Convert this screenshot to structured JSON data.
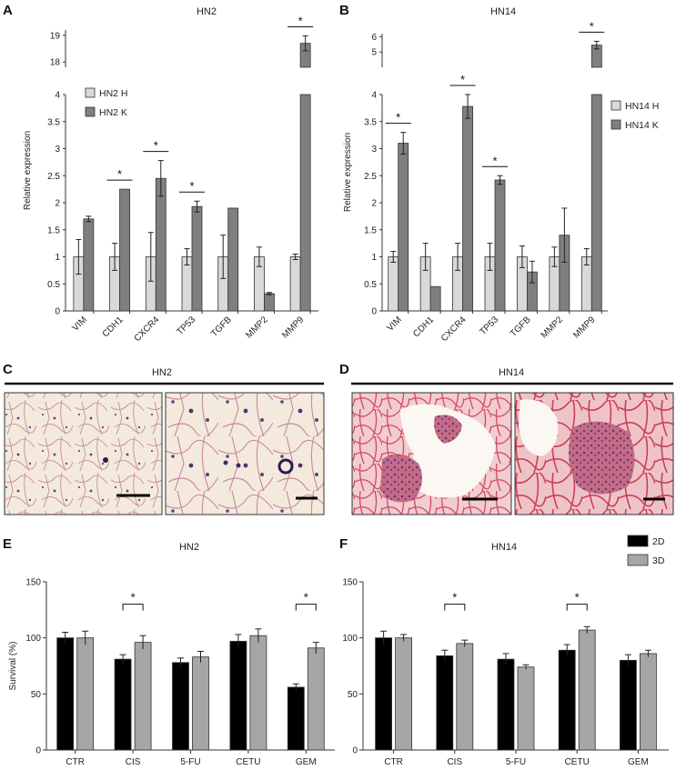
{
  "panels": {
    "A": {
      "letter": "A",
      "title": "HN2"
    },
    "B": {
      "letter": "B",
      "title": "HN14"
    },
    "C": {
      "letter": "C",
      "title": "HN2"
    },
    "D": {
      "letter": "D",
      "title": "HN14"
    },
    "E": {
      "letter": "E",
      "title": "HN2"
    },
    "F": {
      "letter": "F",
      "title": "HN14"
    }
  },
  "chart_data": [
    {
      "id": "A",
      "type": "bar",
      "title": "HN2",
      "ylabel": "Relative expression",
      "categories": [
        "VIM",
        "CDH1",
        "CXCR4",
        "TP53",
        "TGFB",
        "MMP2",
        "MMP9"
      ],
      "yticks_lower": [
        "0",
        "0.5",
        "1",
        "1.5",
        "2",
        "2.5",
        "3",
        "3.5",
        "4"
      ],
      "yticks_upper": [
        "18",
        "19"
      ],
      "axis_break": {
        "lower": [
          0,
          4
        ],
        "upper": [
          17.8,
          19.2
        ]
      },
      "legend": {
        "position": "top-left",
        "colors": {
          "HN2 H": "#d9d9d9",
          "HN2 K": "#7f7f7f"
        }
      },
      "series": [
        {
          "name": "HN2 H",
          "color": "#d9d9d9",
          "values": [
            1.0,
            1.0,
            1.0,
            1.0,
            1.0,
            1.0,
            1.0
          ],
          "errors": [
            0.32,
            0.25,
            0.45,
            0.15,
            0.4,
            0.18,
            0.05
          ]
        },
        {
          "name": "HN2 K",
          "color": "#7f7f7f",
          "values": [
            1.7,
            2.25,
            2.45,
            1.93,
            1.9,
            0.32,
            18.7
          ],
          "errors": [
            0.05,
            0.0,
            0.33,
            0.1,
            0.0,
            0.02,
            0.28
          ]
        }
      ],
      "significance": [
        1,
        2,
        3,
        6
      ]
    },
    {
      "id": "B",
      "type": "bar",
      "title": "HN14",
      "ylabel": "Relative expression",
      "categories": [
        "VIM",
        "CDH1",
        "CXCR4",
        "TP53",
        "TGFB",
        "MMP2",
        "MMP9"
      ],
      "yticks_lower": [
        "0",
        "0.5",
        "1",
        "1.5",
        "2",
        "2.5",
        "3",
        "3.5",
        "4"
      ],
      "yticks_upper": [
        "5",
        "6"
      ],
      "axis_break": {
        "lower": [
          0,
          4
        ],
        "upper": [
          4.0,
          6.2
        ]
      },
      "legend": {
        "position": "right",
        "colors": {
          "HN14 H": "#d9d9d9",
          "HN14 K": "#7f7f7f"
        }
      },
      "series": [
        {
          "name": "HN14 H",
          "color": "#d9d9d9",
          "values": [
            1.0,
            1.0,
            1.0,
            1.0,
            1.0,
            1.0,
            1.0
          ],
          "errors": [
            0.1,
            0.25,
            0.25,
            0.25,
            0.2,
            0.18,
            0.15
          ]
        },
        {
          "name": "HN14 K",
          "color": "#7f7f7f",
          "values": [
            3.1,
            0.45,
            3.78,
            2.42,
            0.72,
            1.4,
            5.45
          ],
          "errors": [
            0.2,
            0.0,
            0.22,
            0.08,
            0.2,
            0.5,
            0.25
          ]
        }
      ],
      "significance": [
        0,
        2,
        3,
        6
      ]
    },
    {
      "id": "E",
      "type": "bar",
      "title": "HN2",
      "ylabel": "Survival (%)",
      "categories": [
        "CTR",
        "CIS",
        "5-FU",
        "CETU",
        "GEM"
      ],
      "yticks": [
        "0",
        "50",
        "100",
        "150"
      ],
      "ylim": [
        0,
        150
      ],
      "series": [
        {
          "name": "2D",
          "color": "#000000",
          "values": [
            100,
            81,
            78,
            97,
            56
          ],
          "errors": [
            5,
            4,
            4,
            6,
            3
          ]
        },
        {
          "name": "3D",
          "color": "#a6a6a6",
          "values": [
            100,
            96,
            83,
            102,
            91
          ],
          "errors": [
            6,
            6,
            5,
            6,
            5
          ]
        }
      ],
      "significance": [
        1,
        4
      ]
    },
    {
      "id": "F",
      "type": "bar",
      "title": "HN14",
      "ylabel": "",
      "categories": [
        "CTR",
        "CIS",
        "5-FU",
        "CETU",
        "GEM"
      ],
      "yticks": [
        "0",
        "50",
        "100",
        "150"
      ],
      "ylim": [
        0,
        150
      ],
      "legend": {
        "position": "top-right",
        "colors": {
          "2D": "#000000",
          "3D": "#a6a6a6"
        }
      },
      "series": [
        {
          "name": "2D",
          "color": "#000000",
          "values": [
            100,
            84,
            81,
            89,
            80
          ],
          "errors": [
            6,
            5,
            5,
            5,
            5
          ]
        },
        {
          "name": "3D",
          "color": "#a6a6a6",
          "values": [
            100,
            95,
            74,
            107,
            86
          ],
          "errors": [
            3,
            3,
            2,
            3,
            3
          ]
        }
      ],
      "significance": [
        1,
        3
      ]
    }
  ],
  "micrographs": {
    "star": "*"
  }
}
